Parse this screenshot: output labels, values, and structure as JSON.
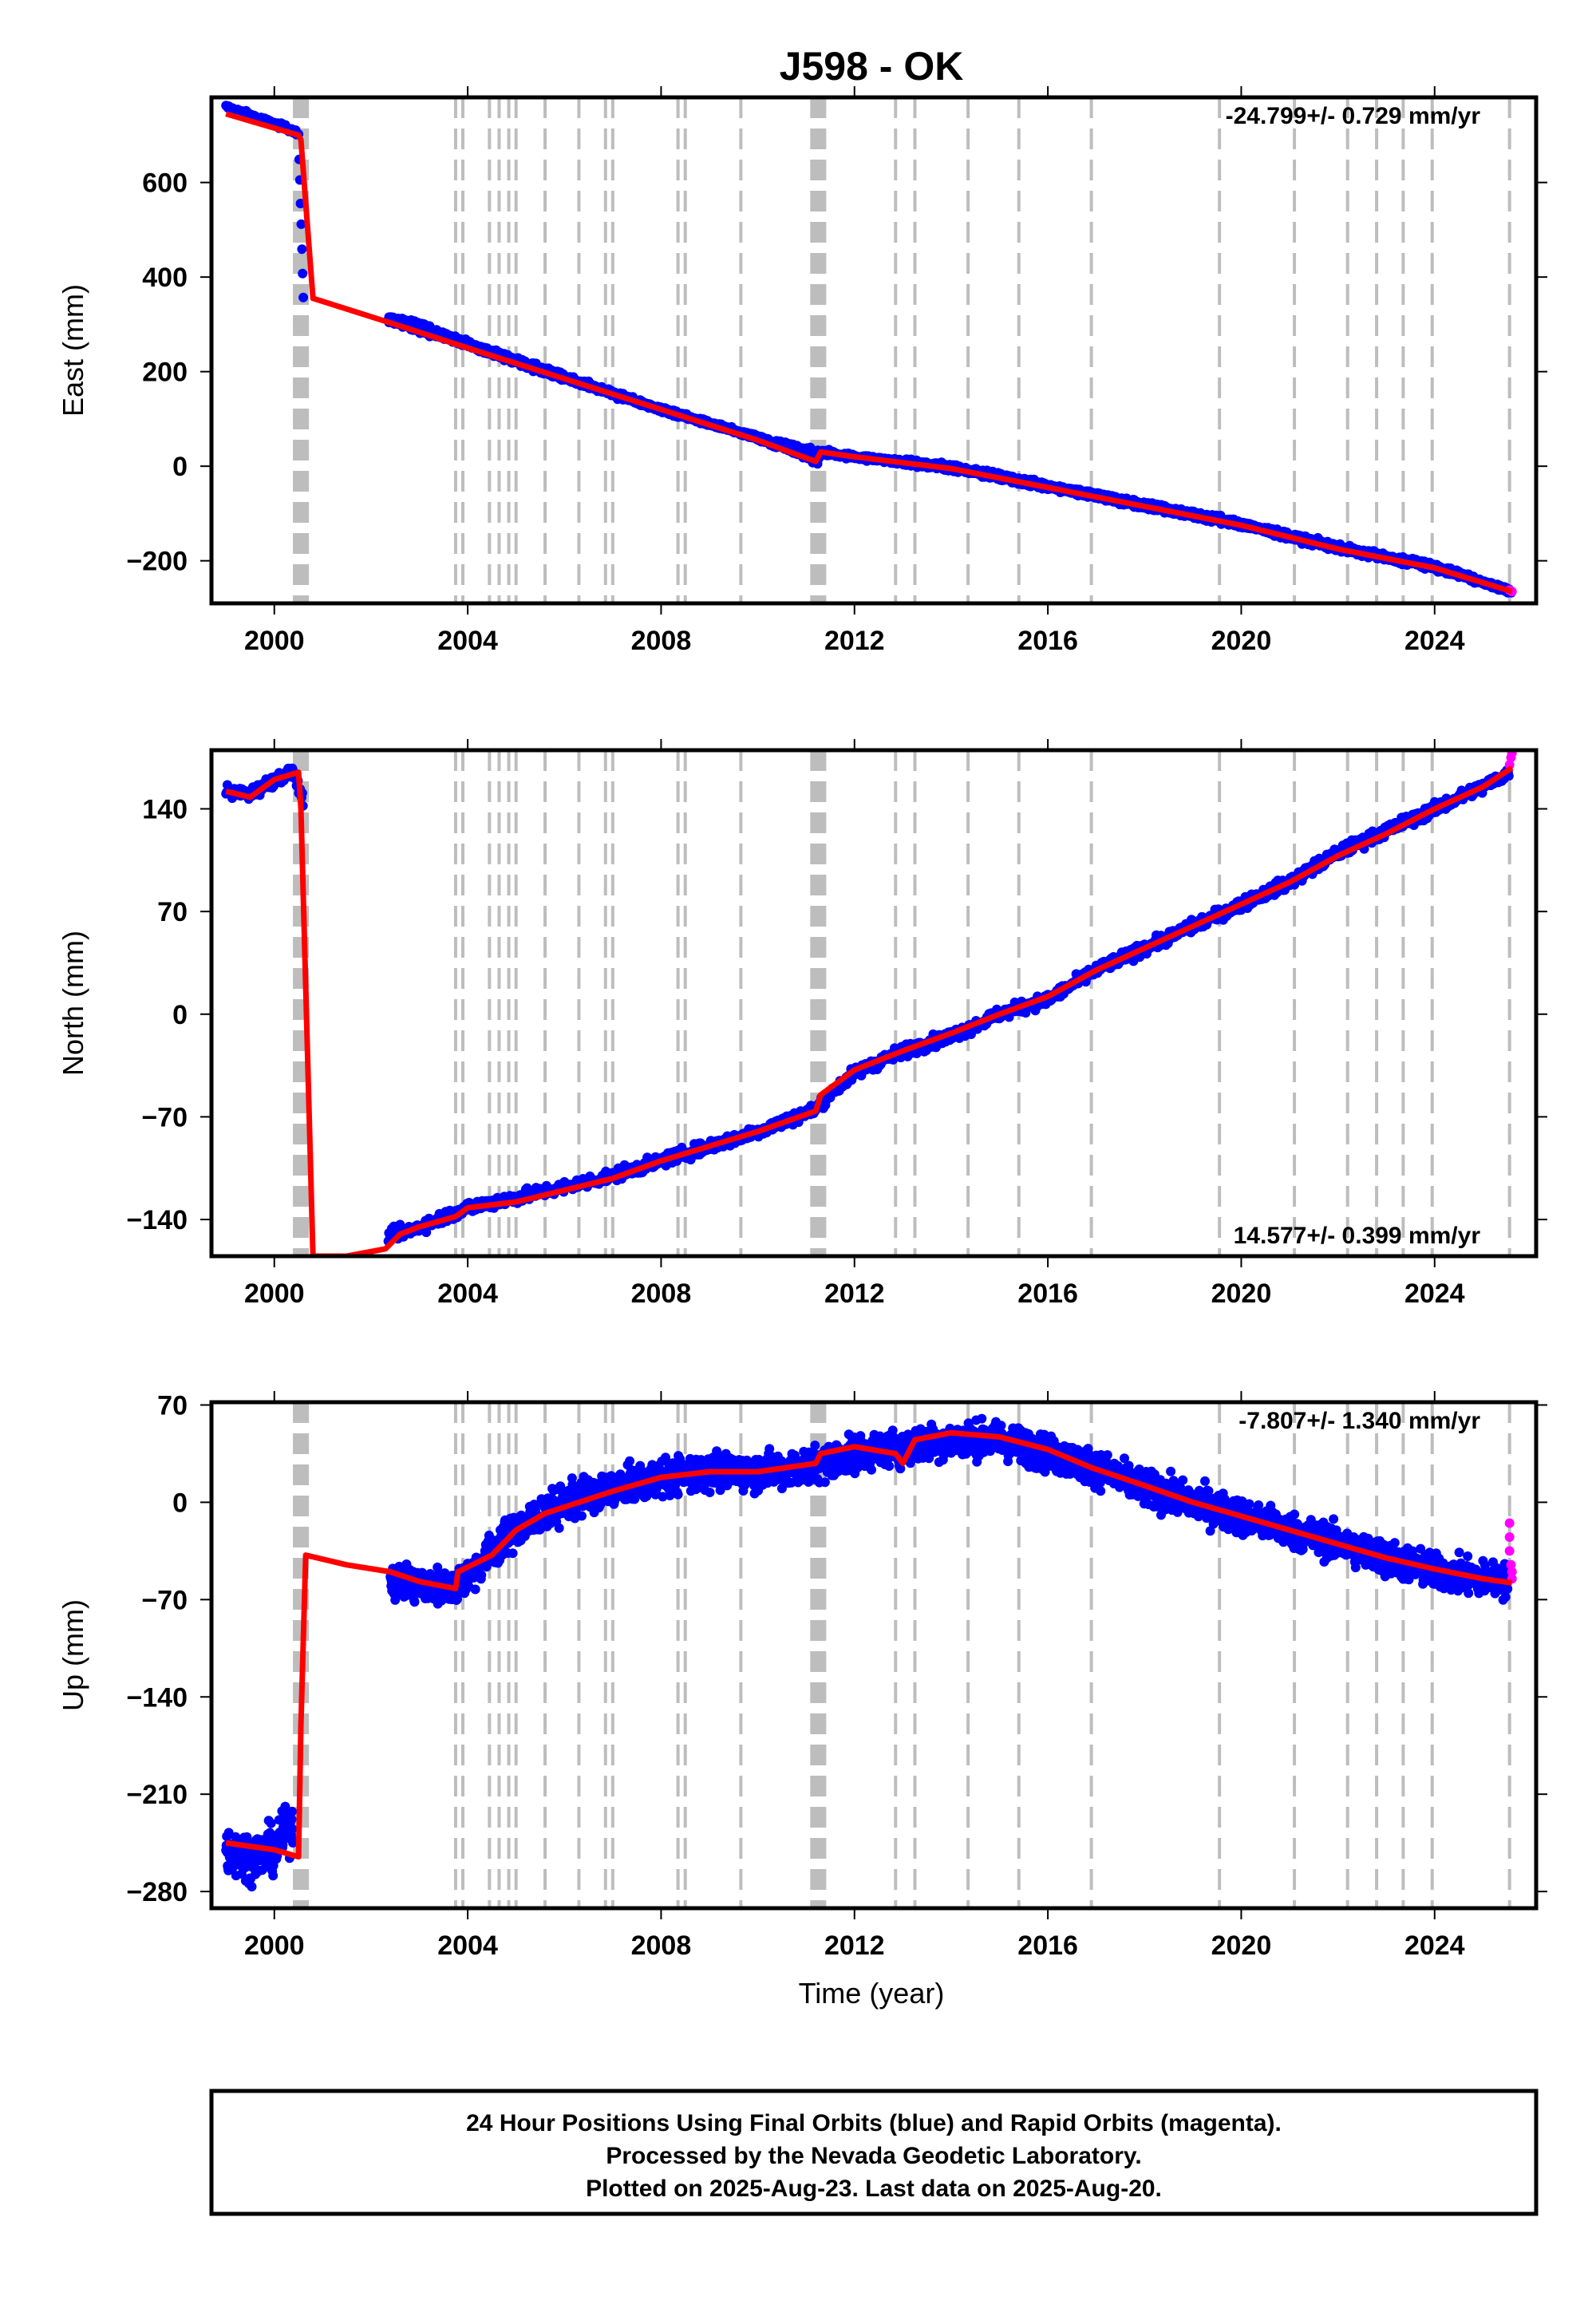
{
  "title": "J598 - OK",
  "xlabel": "Time (year)",
  "footer": {
    "line1": "24 Hour Positions Using Final Orbits (blue) and Rapid Orbits (magenta).",
    "line2": "Processed by the Nevada Geodetic Laboratory.",
    "line3": "Plotted on 2025-Aug-23. Last data on 2025-Aug-20."
  },
  "colors": {
    "final_orbits": "#0000ff",
    "rapid_orbits": "#ff00ff",
    "model": "#ff0000",
    "event_lines": "#bdbdbd",
    "frame": "#000000"
  },
  "event_years": [
    2000.5,
    2000.6,
    2003.75,
    2003.9,
    2004.45,
    2004.65,
    2004.85,
    2005.0,
    2005.6,
    2006.3,
    2006.85,
    2007.0,
    2008.35,
    2008.5,
    2009.65,
    2011.2,
    2011.3,
    2012.85,
    2013.25,
    2014.35,
    2015.4,
    2016.9,
    2019.55,
    2021.1,
    2022.2,
    2022.8,
    2023.35,
    2023.95,
    2025.55
  ],
  "thick_event_years": [
    2000.5,
    2011.25
  ],
  "chart_data": [
    {
      "type": "scatter",
      "panel": "East",
      "ylabel": "East (mm)",
      "rate_label": "-24.799+/- 0.729 mm/yr",
      "xlim": [
        1998.7,
        2026.1
      ],
      "ylim": [
        -290,
        780
      ],
      "x_ticks": [
        2000,
        2004,
        2008,
        2012,
        2016,
        2020,
        2024
      ],
      "y_ticks": [
        -200,
        0,
        200,
        400,
        600
      ],
      "y_tick_labels": [
        "−200",
        "0",
        "200",
        "400",
        "600"
      ],
      "series": [
        {
          "values_x": [
            1999.0,
            2000.4,
            2000.5,
            2000.6,
            2000.8,
            2002.5,
            2003.0,
            2004.0,
            2006.0,
            2008.0,
            2010.0,
            2011.2,
            2011.3,
            2012.0,
            2014.0,
            2016.0,
            2018.0,
            2020.0,
            2022.0,
            2024.0,
            2025.6
          ],
          "values_y": [
            760,
            710,
            700,
            360,
            350,
            310,
            300,
            260,
            190,
            120,
            60,
            30,
            30,
            20,
            0,
            -40,
            -80,
            -120,
            -170,
            -210,
            -265
          ]
        },
        {
          "values_x": [
            2001.0,
            2002.5,
            2004.0,
            2006.0,
            2008.0,
            2010.0,
            2011.25,
            2011.3,
            2012.0,
            2014.0,
            2016.0,
            2018.0,
            2020.0,
            2022.0,
            2024.0,
            2025.6
          ],
          "values_y": [
            340,
            305,
            255,
            185,
            120,
            60,
            10,
            30,
            20,
            -5,
            -45,
            -85,
            -125,
            -175,
            -215,
            -265
          ]
        }
      ],
      "model": {
        "x": [
          1999.0,
          2000.5,
          2000.55,
          2000.8,
          2002.5,
          2004.0,
          2006.0,
          2008.0,
          2010.0,
          2011.2,
          2011.3,
          2012.0,
          2014.0,
          2016.0,
          2018.0,
          2020.0,
          2022.0,
          2024.0,
          2025.6
        ],
        "y": [
          745,
          700,
          690,
          355,
          300,
          250,
          185,
          120,
          55,
          10,
          30,
          20,
          -5,
          -45,
          -85,
          -125,
          -175,
          -215,
          -265
        ]
      },
      "rapid": {
        "x": [
          2025.55,
          2025.6
        ],
        "y": [
          -262,
          -265
        ]
      }
    },
    {
      "type": "scatter",
      "panel": "North",
      "ylabel": "North (mm)",
      "rate_label": "14.577+/- 0.399 mm/yr",
      "xlim": [
        1998.7,
        2026.1
      ],
      "ylim": [
        -165,
        180
      ],
      "x_ticks": [
        2000,
        2004,
        2008,
        2012,
        2016,
        2020,
        2024
      ],
      "y_ticks": [
        -140,
        -70,
        0,
        70,
        140
      ],
      "y_tick_labels": [
        "−140",
        "−70",
        "0",
        "70",
        "140"
      ],
      "series": [
        {
          "values_x": [
            1999.0,
            1999.5,
            2000.0,
            2000.4,
            2000.55,
            2002.3,
            2002.5,
            2003.0,
            2004.0,
            2005.0,
            2006.0,
            2007.0,
            2008.0,
            2009.0,
            2010.0,
            2011.2,
            2011.3,
            2012.0,
            2013.0,
            2014.0,
            2015.0,
            2016.0,
            2017.0,
            2018.0,
            2019.0,
            2020.0,
            2021.0,
            2022.0,
            2023.0,
            2024.0,
            2025.0,
            2025.55
          ],
          "values_y": [
            152,
            150,
            160,
            165,
            150,
            -150,
            -150,
            -145,
            -132,
            -125,
            -118,
            -110,
            -100,
            -90,
            -80,
            -65,
            -60,
            -40,
            -25,
            -15,
            0,
            10,
            30,
            45,
            60,
            75,
            90,
            110,
            125,
            140,
            155,
            165
          ]
        }
      ],
      "model": {
        "x": [
          1999.0,
          1999.5,
          2000.0,
          2000.5,
          2000.55,
          2000.8,
          2001.5,
          2002.3,
          2002.6,
          2003.0,
          2003.75,
          2004.0,
          2005.0,
          2006.0,
          2007.0,
          2008.0,
          2009.0,
          2010.0,
          2011.2,
          2011.3,
          2012.0,
          2013.0,
          2014.0,
          2015.0,
          2016.0,
          2017.0,
          2018.0,
          2019.0,
          2020.0,
          2021.0,
          2022.0,
          2023.0,
          2024.0,
          2025.0,
          2025.6
        ],
        "y": [
          152,
          148,
          160,
          165,
          140,
          -165,
          -165,
          -160,
          -150,
          -145,
          -138,
          -132,
          -128,
          -120,
          -112,
          -100,
          -90,
          -80,
          -66,
          -55,
          -38,
          -25,
          -13,
          0,
          12,
          30,
          45,
          60,
          75,
          90,
          108,
          123,
          140,
          155,
          168
        ]
      },
      "rapid": {
        "x": [
          2025.55,
          2025.58,
          2025.6
        ],
        "y": [
          170,
          175,
          178
        ]
      }
    },
    {
      "type": "scatter",
      "panel": "Up",
      "ylabel": "Up (mm)",
      "rate_label": "-7.807+/- 1.340 mm/yr",
      "xlim": [
        1998.7,
        2026.1
      ],
      "ylim": [
        -292,
        72
      ],
      "x_ticks": [
        2000,
        2004,
        2008,
        2012,
        2016,
        2020,
        2024
      ],
      "x_tick_labels": [
        "2000",
        "2004",
        "2008",
        "2012",
        "2016",
        "2020",
        "2024"
      ],
      "y_ticks": [
        -280,
        -210,
        -140,
        -70,
        0,
        70
      ],
      "y_tick_labels": [
        "−280",
        "−210",
        "−140",
        "−70",
        "0",
        "70"
      ],
      "series": [
        {
          "values_x": [
            1999.0,
            1999.5,
            2000.0,
            2000.4,
            2002.4,
            2003.0,
            2003.8,
            2004.5,
            2005.0,
            2006.0,
            2007.0,
            2008.0,
            2009.0,
            2010.0,
            2011.0,
            2012.0,
            2013.0,
            2014.0,
            2015.0,
            2016.0,
            2017.0,
            2018.0,
            2019.0,
            2020.0,
            2021.0,
            2022.0,
            2023.0,
            2024.0,
            2025.0,
            2025.55
          ],
          "values_y": [
            -250,
            -255,
            -250,
            -230,
            -55,
            -60,
            -60,
            -35,
            -20,
            0,
            10,
            18,
            22,
            22,
            25,
            35,
            40,
            45,
            45,
            35,
            25,
            10,
            0,
            -10,
            -20,
            -30,
            -40,
            -50,
            -55,
            -57
          ]
        }
      ],
      "model": {
        "x": [
          1999.0,
          2000.0,
          2000.5,
          2000.55,
          2000.65,
          2001.5,
          2002.4,
          2003.0,
          2003.75,
          2003.8,
          2004.5,
          2005.0,
          2005.6,
          2006.3,
          2007.0,
          2008.0,
          2009.0,
          2010.0,
          2011.2,
          2011.3,
          2012.0,
          2012.85,
          2013.0,
          2013.25,
          2014.0,
          2015.0,
          2016.0,
          2016.9,
          2018.0,
          2019.0,
          2020.0,
          2021.0,
          2022.0,
          2023.0,
          2024.0,
          2025.0,
          2025.6
        ],
        "y": [
          -245,
          -250,
          -255,
          -160,
          -38,
          -45,
          -50,
          -57,
          -62,
          -50,
          -38,
          -20,
          -8,
          0,
          8,
          18,
          22,
          22,
          28,
          35,
          40,
          35,
          28,
          45,
          50,
          47,
          38,
          25,
          12,
          0,
          -10,
          -20,
          -30,
          -40,
          -48,
          -55,
          -58
        ]
      },
      "rapid": {
        "x": [
          2025.55,
          2025.55,
          2025.55,
          2025.58,
          2025.6,
          2025.6
        ],
        "y": [
          -15,
          -25,
          -35,
          -45,
          -55,
          -50
        ]
      }
    }
  ]
}
